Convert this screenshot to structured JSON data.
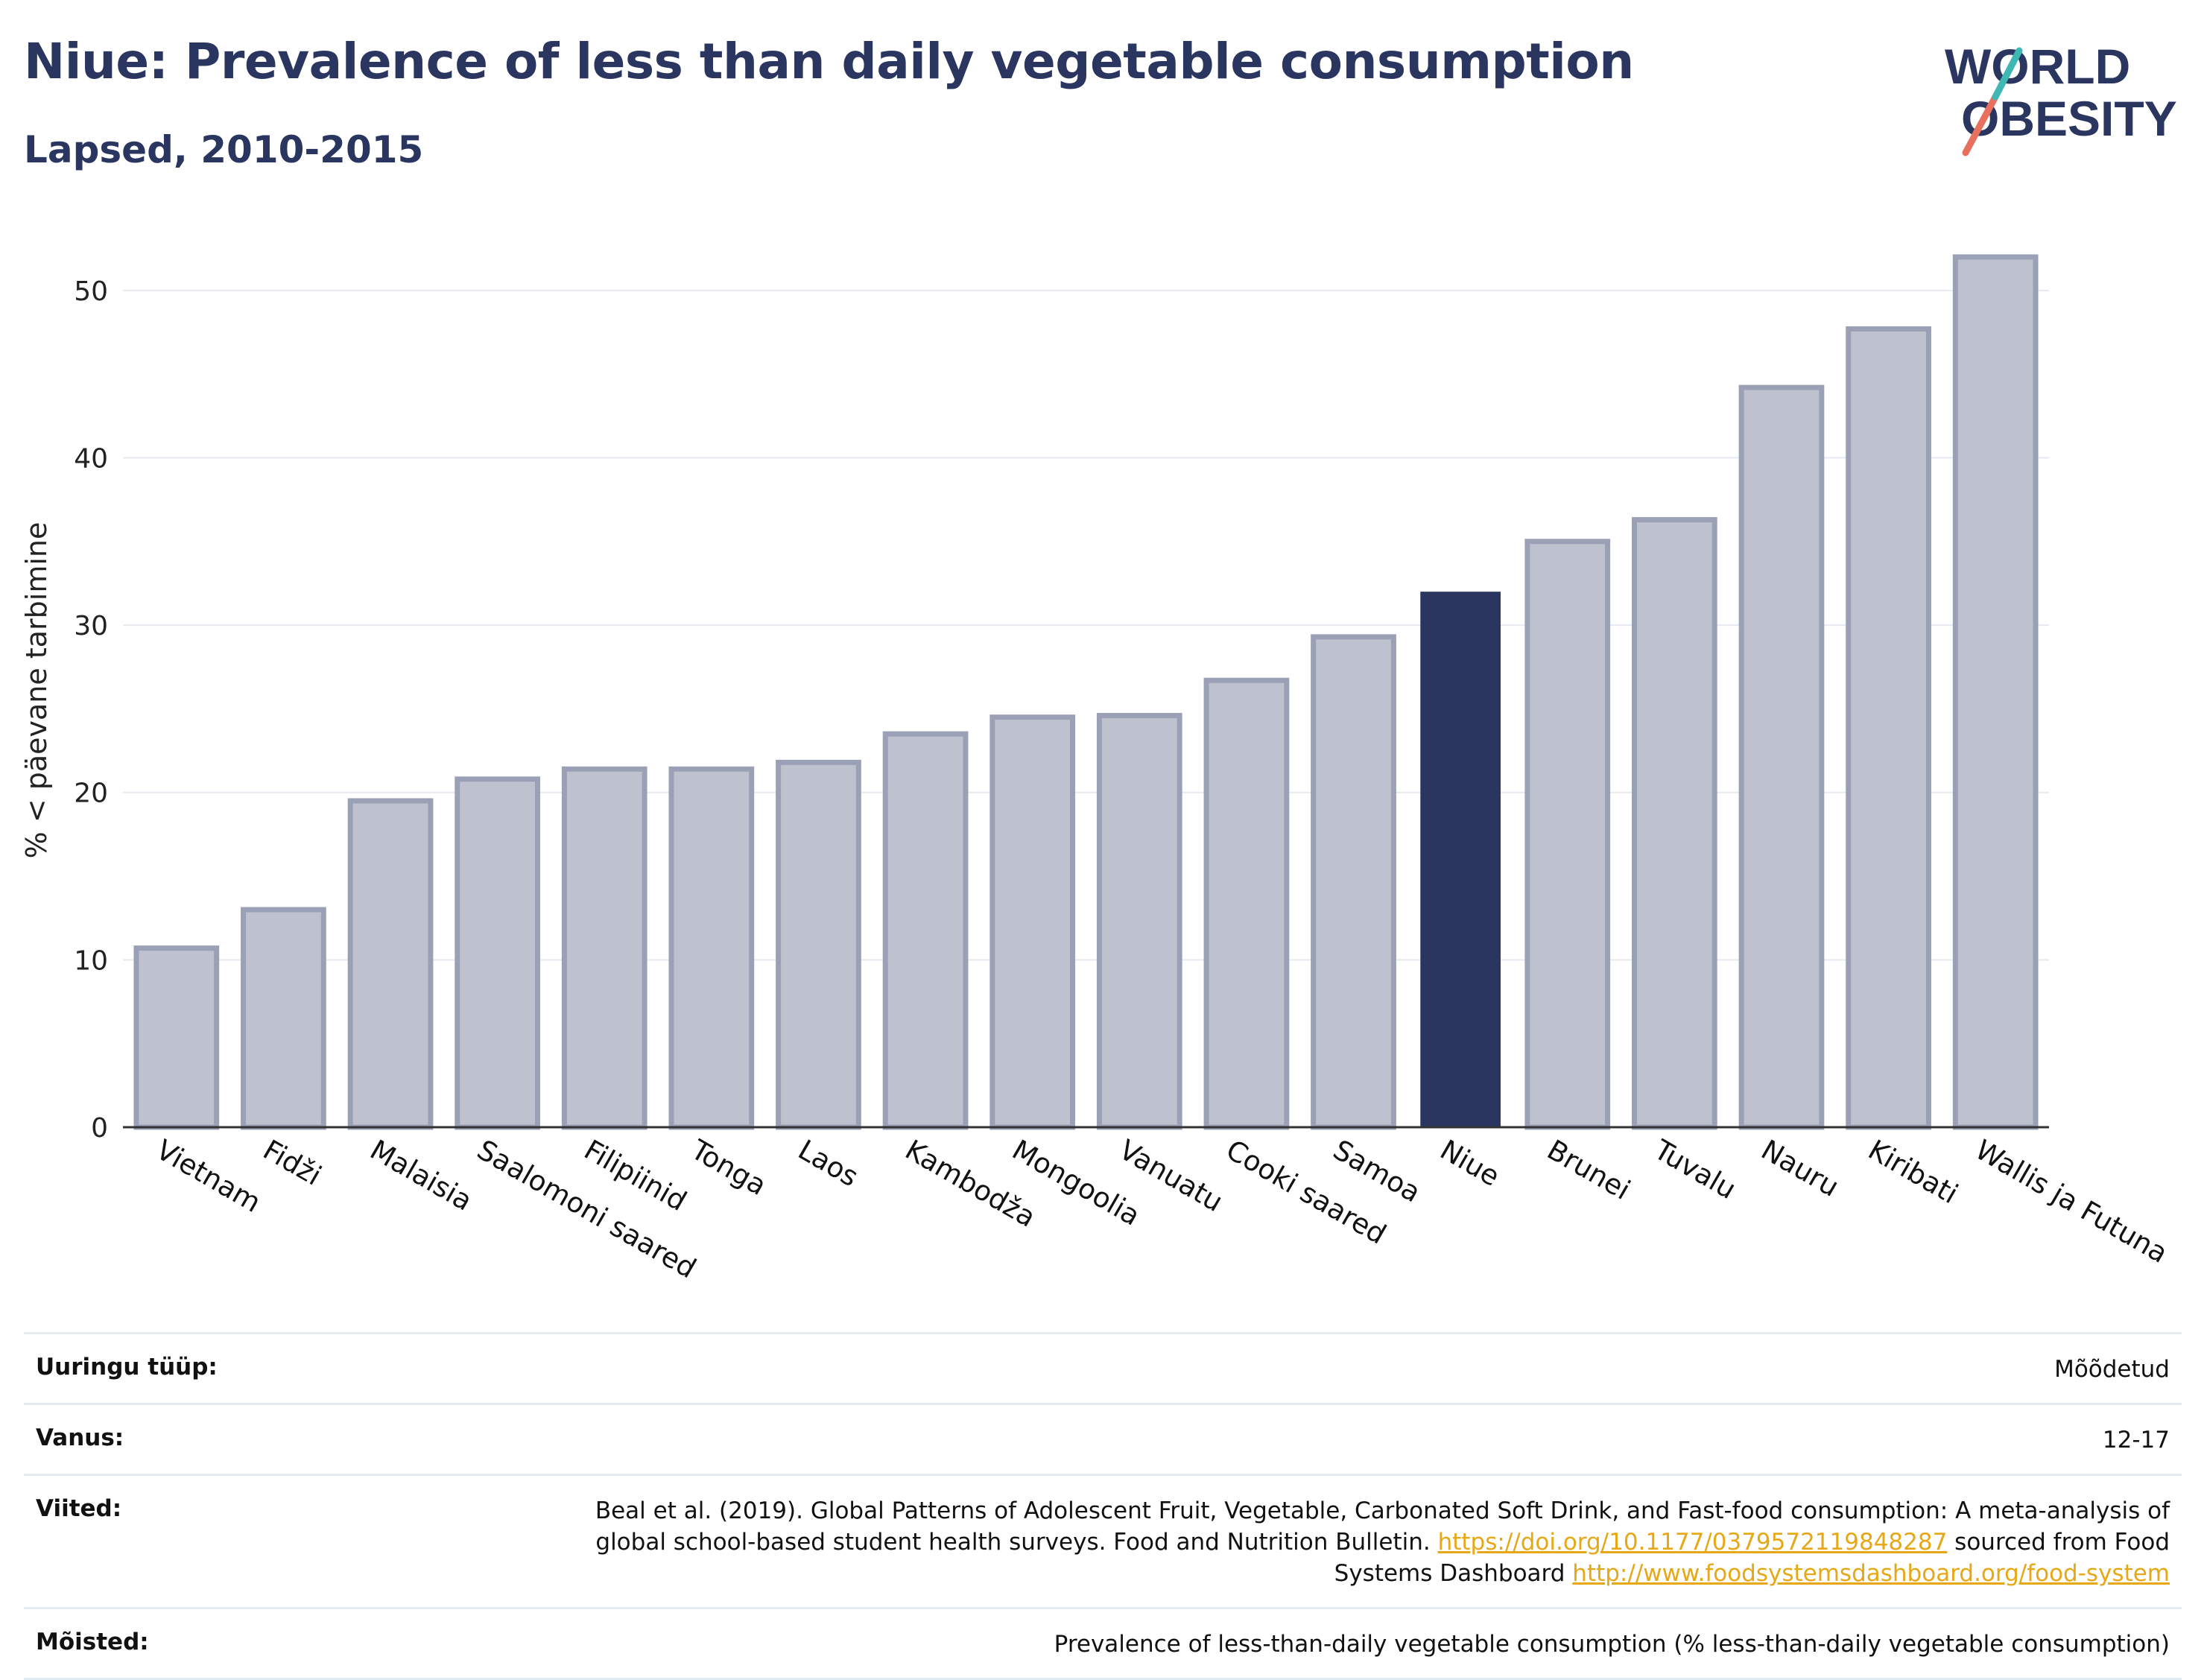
{
  "header": {
    "title": "Niue: Prevalence of less than daily vegetable consumption",
    "subtitle": "Lapsed, 2010-2015"
  },
  "logo": {
    "line1": "WORLD",
    "line2": "OBESITY"
  },
  "colors": {
    "highlight": "#2a3560",
    "bar_fill": "#bec2cf",
    "bar_stroke": "#9aa0b6",
    "grid": "#e6e9ef",
    "logo_teal": "#3fb8b4",
    "logo_coral": "#e8705f",
    "link": "#e6a817"
  },
  "chart_data": {
    "type": "bar",
    "ylabel": "% < päevane tarbimine",
    "ylim": [
      0,
      54
    ],
    "yticks": [
      0,
      10,
      20,
      30,
      40,
      50
    ],
    "grid": true,
    "highlight": "Niue",
    "categories": [
      "Vietnam",
      "Fidži",
      "Malaisia",
      "Saalomoni saared",
      "Filipiinid",
      "Tonga",
      "Laos",
      "Kambodža",
      "Mongoolia",
      "Vanuatu",
      "Cooki saared",
      "Samoa",
      "Niue",
      "Brunei",
      "Tuvalu",
      "Nauru",
      "Kiribati",
      "Wallis ja Futuna"
    ],
    "values": [
      10.7,
      13.0,
      19.5,
      20.8,
      21.4,
      21.4,
      21.8,
      23.5,
      24.5,
      24.6,
      26.7,
      29.3,
      32.0,
      35.0,
      36.3,
      44.2,
      47.7,
      52.0
    ]
  },
  "meta": {
    "rows": [
      {
        "label": "Uuringu tüüp:",
        "value": "Mõõdetud"
      },
      {
        "label": "Vanus:",
        "value": "12-17"
      },
      {
        "label": "Viited:",
        "value_pre": "Beal et al. (2019). Global Patterns of Adolescent Fruit, Vegetable, Carbonated Soft Drink, and Fast-food consumption: A meta-analysis of global school-based student health surveys. Food and Nutrition Bulletin. ",
        "link1": "https://doi.org/10.1177/0379572119848287",
        "value_mid": " sourced from Food Systems Dashboard ",
        "link2": "http://www.foodsystemsdashboard.org/food-system"
      },
      {
        "label": "Mõisted:",
        "value": "Prevalence of less-than-daily vegetable consumption (% less-than-daily vegetable consumption)"
      }
    ]
  }
}
